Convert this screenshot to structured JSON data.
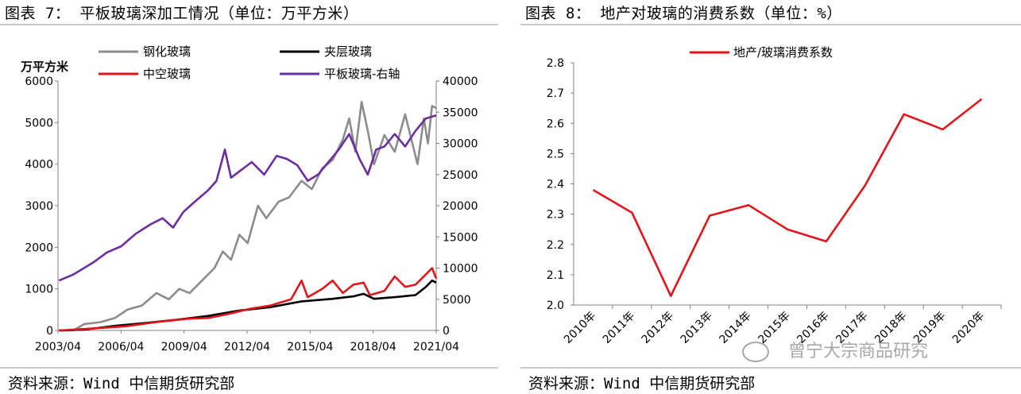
{
  "left": {
    "figure_title": "图表 7：  平板玻璃深加工情况（单位：万平方米）",
    "source": "资料来源：Wind 中信期货研究部"
  },
  "right": {
    "figure_title": "图表 8：  地产对玻璃的消费系数（单位：%）",
    "source": "资料来源：Wind 中信期货研究部"
  },
  "watermark": "曾宁大宗商品研究",
  "chart_data": [
    {
      "type": "line",
      "ylabel": "万平方米",
      "left_axis": {
        "ylim": [
          0,
          6000
        ],
        "ticks": [
          "0",
          "1000",
          "2000",
          "3000",
          "4000",
          "5000",
          "6000"
        ]
      },
      "right_axis": {
        "ylim": [
          0,
          40000
        ],
        "ticks": [
          "0",
          "5000",
          "10000",
          "15000",
          "20000",
          "25000",
          "30000",
          "35000",
          "40000"
        ]
      },
      "x_ticks": [
        "2003/04",
        "2006/04",
        "2009/04",
        "2012/04",
        "2015/04",
        "2018/04",
        "2021/04"
      ],
      "legend_position": "top",
      "colors": {
        "tempered": "#8c8c8c",
        "laminated": "#000000",
        "hollow": "#e0161c",
        "flat": "#6a2ea0"
      },
      "series": [
        {
          "key": "tempered",
          "name": "钢化玻璃",
          "axis": "left",
          "points": [
            [
              2003.3,
              0
            ],
            [
              2004.0,
              0
            ],
            [
              2004.5,
              150
            ],
            [
              2005.3,
              200
            ],
            [
              2006.0,
              300
            ],
            [
              2006.6,
              500
            ],
            [
              2007.3,
              600
            ],
            [
              2008.0,
              900
            ],
            [
              2008.6,
              750
            ],
            [
              2009.1,
              1000
            ],
            [
              2009.6,
              900
            ],
            [
              2010.2,
              1200
            ],
            [
              2010.8,
              1500
            ],
            [
              2011.2,
              1900
            ],
            [
              2011.6,
              1700
            ],
            [
              2012.0,
              2300
            ],
            [
              2012.4,
              2100
            ],
            [
              2012.9,
              3000
            ],
            [
              2013.3,
              2700
            ],
            [
              2013.9,
              3100
            ],
            [
              2014.4,
              3200
            ],
            [
              2015.0,
              3600
            ],
            [
              2015.5,
              3400
            ],
            [
              2016.0,
              3900
            ],
            [
              2016.5,
              4100
            ],
            [
              2017.0,
              4600
            ],
            [
              2017.3,
              5100
            ],
            [
              2017.6,
              4300
            ],
            [
              2017.9,
              5500
            ],
            [
              2018.2,
              4800
            ],
            [
              2018.5,
              4000
            ],
            [
              2019.0,
              4700
            ],
            [
              2019.5,
              4300
            ],
            [
              2020.0,
              5200
            ],
            [
              2020.3,
              4600
            ],
            [
              2020.6,
              4000
            ],
            [
              2020.9,
              5100
            ],
            [
              2021.1,
              4500
            ],
            [
              2021.3,
              5400
            ],
            [
              2021.5,
              5350
            ]
          ]
        },
        {
          "key": "laminated",
          "name": "夹层玻璃",
          "axis": "left",
          "points": [
            [
              2003.3,
              0
            ],
            [
              2004.5,
              20
            ],
            [
              2006.0,
              110
            ],
            [
              2007.5,
              180
            ],
            [
              2009.0,
              260
            ],
            [
              2010.5,
              350
            ],
            [
              2012.0,
              480
            ],
            [
              2013.5,
              560
            ],
            [
              2015.0,
              700
            ],
            [
              2016.5,
              760
            ],
            [
              2017.5,
              820
            ],
            [
              2018.0,
              880
            ],
            [
              2018.5,
              760
            ],
            [
              2019.5,
              800
            ],
            [
              2020.5,
              850
            ],
            [
              2021.0,
              1050
            ],
            [
              2021.3,
              1200
            ],
            [
              2021.5,
              1150
            ]
          ]
        },
        {
          "key": "hollow",
          "name": "中空玻璃",
          "axis": "left",
          "points": [
            [
              2003.3,
              0
            ],
            [
              2005.0,
              50
            ],
            [
              2006.5,
              100
            ],
            [
              2008.0,
              200
            ],
            [
              2009.5,
              280
            ],
            [
              2010.5,
              300
            ],
            [
              2011.5,
              400
            ],
            [
              2012.5,
              520
            ],
            [
              2013.5,
              600
            ],
            [
              2014.5,
              750
            ],
            [
              2015.0,
              1200
            ],
            [
              2015.3,
              800
            ],
            [
              2016.0,
              1000
            ],
            [
              2016.5,
              1200
            ],
            [
              2017.0,
              900
            ],
            [
              2017.5,
              1100
            ],
            [
              2018.0,
              1150
            ],
            [
              2018.3,
              850
            ],
            [
              2019.0,
              950
            ],
            [
              2019.5,
              1300
            ],
            [
              2020.0,
              1050
            ],
            [
              2020.5,
              1100
            ],
            [
              2021.0,
              1350
            ],
            [
              2021.3,
              1500
            ],
            [
              2021.5,
              1250
            ]
          ]
        },
        {
          "key": "flat",
          "name": "平板玻璃-右轴",
          "axis": "right",
          "points": [
            [
              2003.3,
              8000
            ],
            [
              2004.0,
              9000
            ],
            [
              2005.0,
              11000
            ],
            [
              2005.6,
              12500
            ],
            [
              2006.3,
              13500
            ],
            [
              2007.0,
              15500
            ],
            [
              2007.7,
              17000
            ],
            [
              2008.3,
              18000
            ],
            [
              2008.8,
              16500
            ],
            [
              2009.3,
              19000
            ],
            [
              2009.8,
              20500
            ],
            [
              2010.5,
              22500
            ],
            [
              2010.9,
              24000
            ],
            [
              2011.3,
              29000
            ],
            [
              2011.6,
              24500
            ],
            [
              2012.0,
              25500
            ],
            [
              2012.6,
              27000
            ],
            [
              2013.2,
              25000
            ],
            [
              2013.8,
              28000
            ],
            [
              2014.3,
              27500
            ],
            [
              2014.8,
              26500
            ],
            [
              2015.3,
              24000
            ],
            [
              2015.8,
              25000
            ],
            [
              2016.3,
              27000
            ],
            [
              2016.8,
              29000
            ],
            [
              2017.3,
              31500
            ],
            [
              2017.8,
              27500
            ],
            [
              2018.2,
              25000
            ],
            [
              2018.6,
              29000
            ],
            [
              2019.0,
              29500
            ],
            [
              2019.5,
              31500
            ],
            [
              2020.0,
              29500
            ],
            [
              2020.5,
              32000
            ],
            [
              2021.0,
              34000
            ],
            [
              2021.5,
              34500
            ]
          ]
        }
      ]
    },
    {
      "type": "line",
      "ylim": [
        2.0,
        2.8
      ],
      "y_ticks": [
        "2.0",
        "2.1",
        "2.2",
        "2.3",
        "2.4",
        "2.5",
        "2.6",
        "2.7",
        "2.8"
      ],
      "categories": [
        "2010年",
        "2011年",
        "2012年",
        "2013年",
        "2014年",
        "2015年",
        "2016年",
        "2017年",
        "2018年",
        "2019年",
        "2020年"
      ],
      "legend_position": "top",
      "color": "#e0161c",
      "series": [
        {
          "name": "地产/玻璃消费系数",
          "values": [
            2.38,
            2.305,
            2.03,
            2.295,
            2.33,
            2.25,
            2.21,
            2.395,
            2.63,
            2.58,
            2.68
          ]
        }
      ]
    }
  ]
}
